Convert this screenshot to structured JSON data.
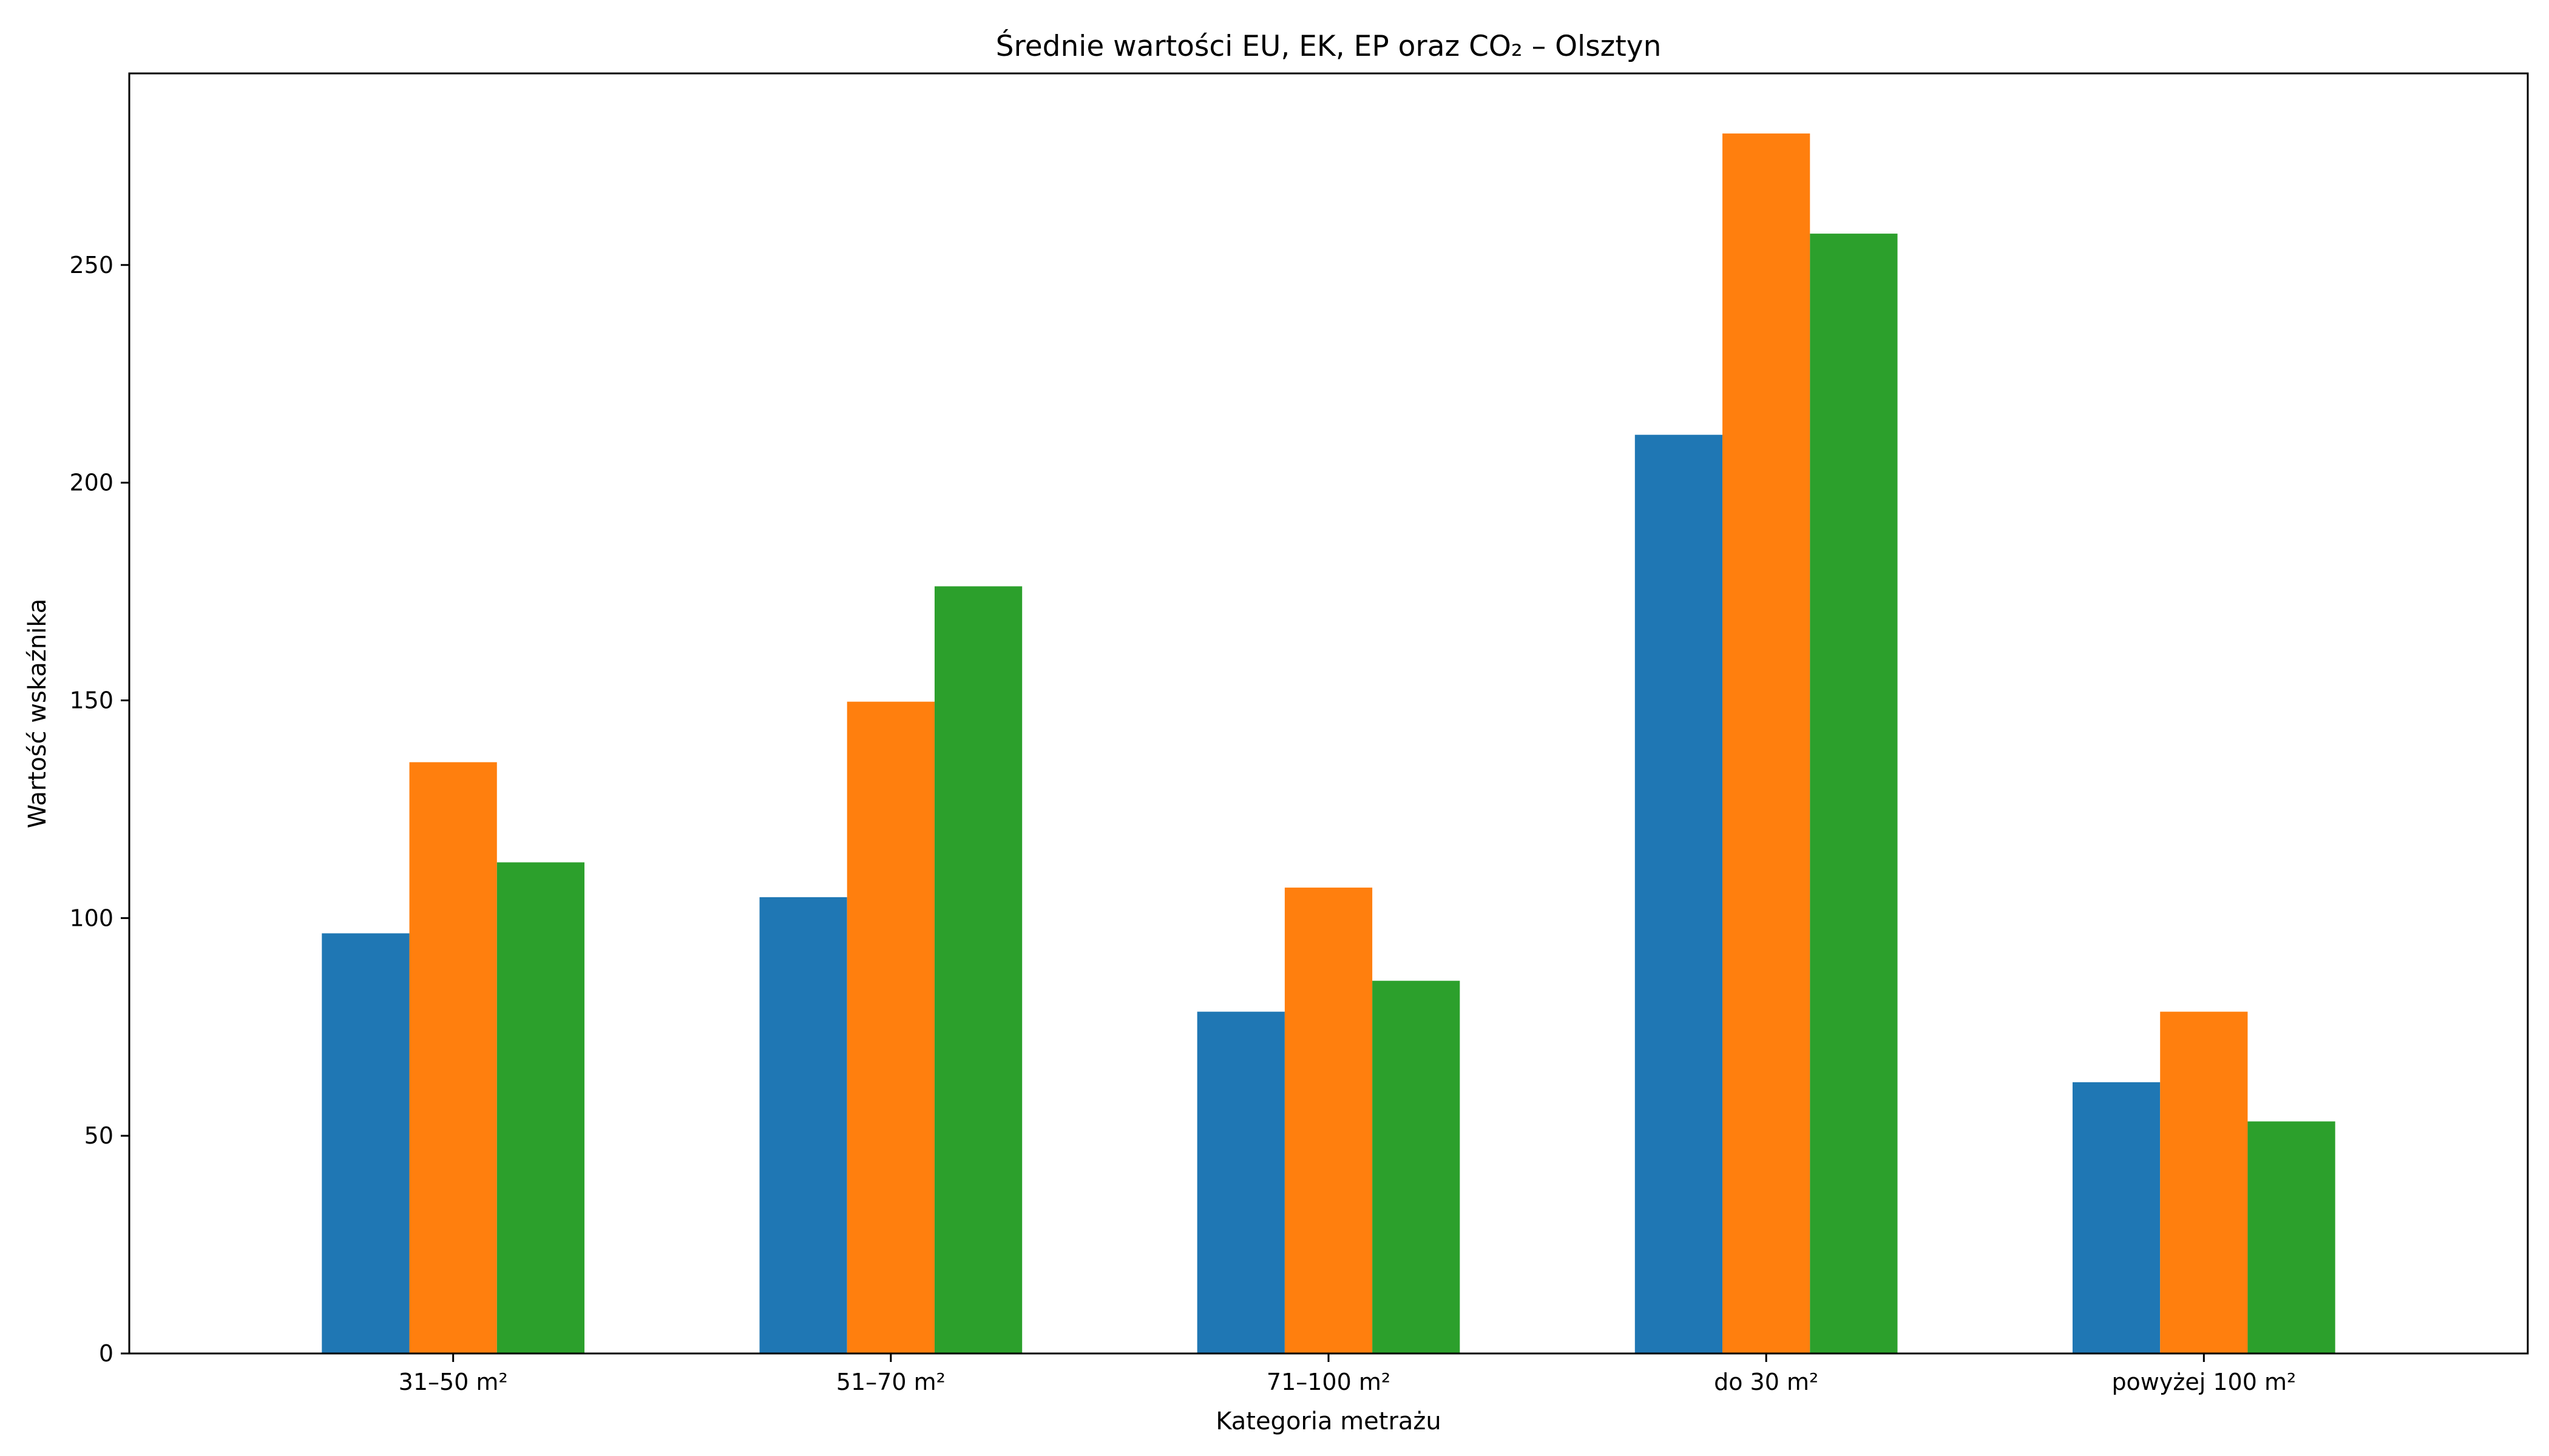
{
  "chart_data": {
    "type": "bar",
    "title": "Średnie wartości EU, EK, EP oraz CO₂ – Olsztyn",
    "xlabel": "Kategoria metrażu",
    "ylabel": "Wartość wskaźnika",
    "categories": [
      "31–50 m²",
      "51–70 m²",
      "71–100 m²",
      "do 30 m²",
      "powyżej 100 m²"
    ],
    "series": [
      {
        "values": [
          96.5,
          104.8,
          78.5,
          211.0,
          62.3
        ],
        "color": "#1f77b4"
      },
      {
        "values": [
          135.8,
          149.7,
          107.0,
          280.2,
          78.5
        ],
        "color": "#ff7f0e"
      },
      {
        "values": [
          112.8,
          176.2,
          85.6,
          257.2,
          53.3
        ],
        "color": "#2ca02c"
      }
    ],
    "ylim": [
      0,
      294
    ],
    "yticks": [
      0,
      50,
      100,
      150,
      200,
      250
    ],
    "grid": false,
    "legend": false
  }
}
